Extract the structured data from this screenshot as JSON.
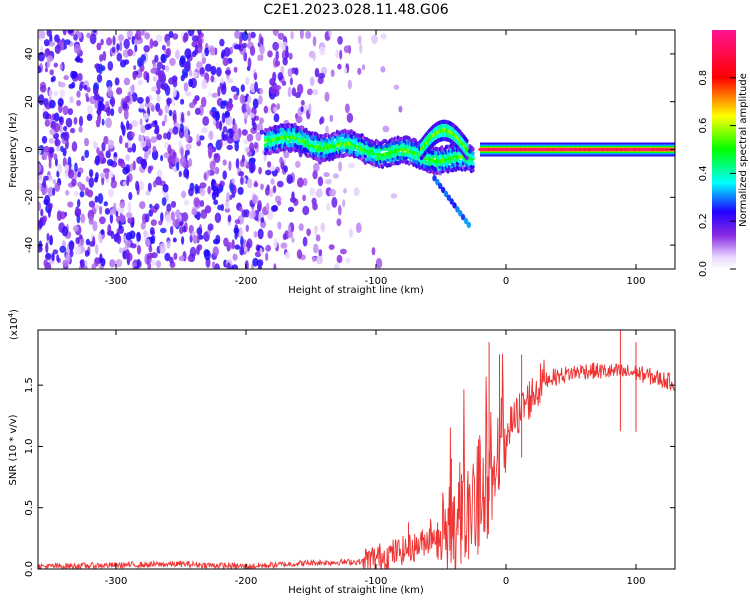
{
  "title": "C2E1.2023.028.11.48.G06",
  "chart_data": [
    {
      "type": "heatmap",
      "name": "spectrogram",
      "xlabel": "Height of straight line (km)",
      "ylabel": "Frequency (Hz)",
      "xlim": [
        -360,
        130
      ],
      "ylim": [
        -50,
        50
      ],
      "xticks": [
        -300,
        -200,
        -100,
        0,
        100
      ],
      "yticks": [
        -40,
        -20,
        0,
        20,
        40
      ],
      "colorbar": {
        "label": "Normalized spectral amplitude",
        "range": [
          0.0,
          1.0
        ],
        "ticks": [
          "0.0",
          "0.2",
          "0.4",
          "0.6",
          "0.8"
        ],
        "colormap": "rainbow (violet to red)"
      },
      "features": [
        {
          "x_range": [
            -360,
            -140
          ],
          "y_range": [
            -50,
            50
          ],
          "description_value": "broadband noise, amplitude 0.1-0.35"
        },
        {
          "x_range": [
            -185,
            -25
          ],
          "center_freq_start": 5,
          "center_freq_end": -5,
          "amplitude": 0.45
        },
        {
          "x_range": [
            -65,
            -30
          ],
          "center_freq": 8,
          "amplitude": 0.5
        },
        {
          "x_range": [
            -55,
            -28
          ],
          "freq_start": -12,
          "freq_end": -32,
          "amplitude": 0.25
        },
        {
          "x_range": [
            -20,
            130
          ],
          "center_freq": 0,
          "amplitude": 0.95
        }
      ]
    },
    {
      "type": "line",
      "name": "snr",
      "xlabel": "Height of straight line (km)",
      "ylabel": "SNR (10 * v/v)",
      "scale_label": "(x10",
      "scale_exp": "4",
      "scale_close": ")",
      "xlim": [
        -360,
        130
      ],
      "ylim": [
        0,
        1.95
      ],
      "xticks": [
        -300,
        -200,
        -100,
        0,
        100
      ],
      "yticks": [
        "0.0",
        "0.5",
        "1.0",
        "1.5"
      ],
      "color": "#ee3333",
      "profile": [
        {
          "x": -360,
          "y": 0.02
        },
        {
          "x": -250,
          "y": 0.04
        },
        {
          "x": -200,
          "y": 0.02
        },
        {
          "x": -150,
          "y": 0.05
        },
        {
          "x": -110,
          "y": 0.06
        },
        {
          "x": -90,
          "y": 0.12
        },
        {
          "x": -70,
          "y": 0.18
        },
        {
          "x": -50,
          "y": 0.3
        },
        {
          "x": -30,
          "y": 0.45
        },
        {
          "x": -15,
          "y": 0.75
        },
        {
          "x": 0,
          "y": 1.1
        },
        {
          "x": 15,
          "y": 1.35
        },
        {
          "x": 30,
          "y": 1.55
        },
        {
          "x": 60,
          "y": 1.62
        },
        {
          "x": 100,
          "y": 1.6
        },
        {
          "x": 130,
          "y": 1.52
        }
      ],
      "spikes": [
        {
          "x": -75,
          "y": 0.38
        },
        {
          "x": -42,
          "y": 0.9
        },
        {
          "x": -13,
          "y": 1.85
        },
        {
          "x": -5,
          "y": 1.75
        },
        {
          "x": 12,
          "y": 1.75
        },
        {
          "x": 88,
          "y": 1.95
        },
        {
          "x": 100,
          "y": 1.85
        }
      ]
    }
  ]
}
